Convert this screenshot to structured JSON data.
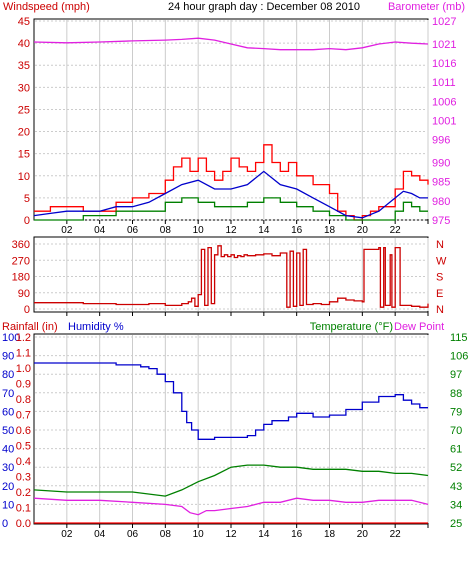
{
  "chart_data": [
    {
      "type": "line",
      "panel": "wind-barometer",
      "title": "24 hour graph day : December 08 2010",
      "ylabel_left": "Windspeed (mph)",
      "ylabel_right": "Barometer (mb)",
      "x_ticks": [
        "02",
        "04",
        "06",
        "08",
        "10",
        "12",
        "14",
        "16",
        "18",
        "20",
        "22",
        ""
      ],
      "xlim": [
        0,
        24
      ],
      "y_left_ticks": [
        0,
        5,
        10,
        15,
        20,
        25,
        30,
        35,
        40,
        45
      ],
      "y_left_range": [
        0,
        45
      ],
      "y_right_ticks": [
        975,
        980,
        985,
        990,
        996,
        1001,
        1006,
        1011,
        1016,
        1021,
        1027
      ],
      "y_right_range": [
        975,
        1027
      ],
      "grid": true,
      "colors": {
        "gust": "#ff0000",
        "average": "#0000cc",
        "lull": "#008000",
        "barometer": "#e020e0"
      },
      "series": [
        {
          "axis": "left",
          "style": "step",
          "x": [
            0,
            1,
            2,
            3,
            4,
            5,
            6,
            7,
            8,
            8.5,
            9,
            9.5,
            10,
            10.5,
            11,
            11.5,
            12,
            12.5,
            13,
            13.5,
            14,
            14.5,
            15,
            15.5,
            16,
            17,
            18,
            18.5,
            19,
            19.5,
            20,
            20.5,
            21,
            22,
            22.5,
            23,
            23.5,
            24
          ],
          "values": [
            2,
            3,
            3,
            2,
            2,
            4,
            5,
            6,
            9,
            12,
            14,
            11,
            14,
            11,
            9,
            11,
            14,
            12,
            11,
            13,
            17,
            13,
            11,
            13,
            10,
            8,
            6,
            2,
            1,
            0,
            1,
            2,
            3,
            7,
            11,
            10,
            9,
            8
          ]
        },
        {
          "axis": "left",
          "style": "line",
          "x": [
            0,
            1,
            2,
            3,
            4,
            5,
            6,
            7,
            8,
            9,
            10,
            11,
            12,
            13,
            14,
            15,
            16,
            17,
            18,
            19,
            20,
            21,
            22,
            22.5,
            23,
            23.5,
            24
          ],
          "values": [
            1,
            1.5,
            2,
            2,
            2,
            3,
            3,
            4,
            6,
            8,
            9,
            7,
            7,
            8,
            11,
            8,
            7,
            5,
            3,
            1,
            0.5,
            2,
            5,
            6.5,
            6,
            5,
            5
          ]
        },
        {
          "axis": "left",
          "style": "step",
          "x": [
            0,
            1,
            2,
            3,
            4,
            5,
            6,
            7,
            8,
            9,
            10,
            11,
            12,
            13,
            14,
            15,
            16,
            17,
            18,
            19,
            20,
            21,
            22,
            22.5,
            23,
            23.5,
            24
          ],
          "values": [
            0,
            0,
            0,
            1,
            1,
            2,
            2,
            2,
            4,
            5,
            4,
            3,
            3,
            4,
            5,
            4,
            3,
            2,
            1,
            0,
            0,
            0,
            2,
            4,
            3,
            2,
            2
          ]
        },
        {
          "axis": "right",
          "style": "line",
          "x": [
            0,
            2,
            4,
            6,
            8,
            9,
            10,
            11,
            12,
            13,
            14,
            15,
            16,
            17,
            18,
            19,
            20,
            21,
            22,
            23,
            24
          ],
          "values": [
            1021.5,
            1021.3,
            1021.5,
            1021.8,
            1022,
            1022.2,
            1022.5,
            1022,
            1021,
            1020,
            1019.8,
            1019.5,
            1019.5,
            1019.5,
            1019.8,
            1019.5,
            1020,
            1021,
            1021.5,
            1021.2,
            1021
          ]
        }
      ]
    },
    {
      "type": "line",
      "panel": "wind-direction",
      "y_left_ticks": [
        0,
        90,
        180,
        270,
        360
      ],
      "y_left_range": [
        0,
        360
      ],
      "y_right_labels": [
        "N",
        "W",
        "S",
        "E",
        "N"
      ],
      "x_ticks": [
        "",
        "",
        "",
        "",
        "",
        "",
        "",
        "",
        "",
        "",
        "",
        ""
      ],
      "xlim": [
        0,
        24
      ],
      "grid": true,
      "colors": {
        "direction": "#cc0000"
      },
      "series": [
        {
          "style": "step",
          "x": [
            0,
            1,
            2,
            3,
            4,
            5,
            6,
            7,
            8,
            9,
            9.4,
            9.6,
            9.8,
            10.0,
            10.2,
            10.4,
            10.6,
            10.8,
            11.0,
            11.2,
            11.4,
            11.6,
            11.8,
            12.0,
            12.2,
            12.4,
            12.6,
            12.8,
            13.0,
            13.5,
            14.0,
            14.5,
            15.0,
            15.4,
            15.6,
            15.8,
            16.0,
            16.2,
            16.4,
            16.6,
            17,
            17.5,
            18,
            18.5,
            19,
            19.5,
            20,
            20.1,
            21,
            21.1,
            21.3,
            21.4,
            21.7,
            21.8,
            22.0,
            22.3,
            23,
            23.5,
            24
          ],
          "values": [
            35,
            35,
            35,
            30,
            30,
            25,
            25,
            30,
            20,
            30,
            40,
            60,
            15,
            80,
            330,
            20,
            340,
            30,
            300,
            350,
            290,
            300,
            290,
            300,
            285,
            295,
            290,
            300,
            295,
            300,
            305,
            295,
            310,
            10,
            320,
            15,
            310,
            20,
            330,
            25,
            30,
            25,
            40,
            60,
            50,
            45,
            40,
            330,
            340,
            10,
            340,
            20,
            300,
            10,
            340,
            20,
            15,
            10,
            30
          ]
        }
      ]
    },
    {
      "type": "line",
      "panel": "rain-humidity-temperature",
      "ylabel_left_1": "Rainfall (in)",
      "ylabel_left_2": "Humidity %",
      "ylabel_right_1": "Temperature (°F)",
      "ylabel_right_2": "Dew Point",
      "x_ticks": [
        "02",
        "04",
        "06",
        "08",
        "10",
        "12",
        "14",
        "16",
        "18",
        "20",
        "22",
        ""
      ],
      "xlim": [
        0,
        24
      ],
      "y_humidity_ticks": [
        0,
        10,
        20,
        30,
        40,
        50,
        60,
        70,
        80,
        90,
        100
      ],
      "y_humidity_range": [
        0,
        100
      ],
      "y_rain_ticks": [
        "0.0",
        "0.1",
        "0.2",
        "0.3",
        "0.4",
        "0.5",
        "0.6",
        "0.7",
        "0.8",
        "0.9",
        "1.0",
        "1.1",
        "1.2"
      ],
      "y_rain_range": [
        0,
        1.2
      ],
      "y_temp_ticks": [
        25,
        34,
        43,
        52,
        61,
        70,
        79,
        88,
        97,
        106,
        115
      ],
      "y_temp_range": [
        25,
        115
      ],
      "grid": true,
      "colors": {
        "humidity": "#0000cc",
        "temperature": "#008000",
        "dewpoint": "#e020e0",
        "rainfall": "#ff0000"
      },
      "series": [
        {
          "axis": "humidity",
          "style": "step",
          "x": [
            0,
            1,
            2,
            3,
            4,
            5,
            6,
            6.5,
            7,
            7.5,
            8,
            8.5,
            9,
            9.3,
            9.6,
            10,
            10.5,
            11,
            12,
            13,
            13.5,
            14,
            14.5,
            15,
            15.5,
            16,
            17,
            18,
            19,
            20,
            21,
            22,
            22.5,
            23,
            23.5,
            24
          ],
          "values": [
            86,
            86,
            86,
            86,
            86,
            85,
            85,
            84,
            83,
            80,
            76,
            70,
            60,
            54,
            50,
            45,
            45,
            46,
            46,
            47,
            50,
            53,
            55,
            55,
            57,
            59,
            57,
            58,
            61,
            65,
            68,
            69,
            66,
            64,
            62,
            62
          ]
        },
        {
          "axis": "temp",
          "style": "line",
          "x": [
            0,
            2,
            4,
            6,
            8,
            9,
            10,
            11,
            12,
            13,
            14,
            15,
            16,
            17,
            18,
            19,
            20,
            21,
            22,
            23,
            24
          ],
          "values": [
            41,
            40,
            40,
            40,
            38,
            41,
            45,
            48,
            52,
            53,
            53,
            52,
            52,
            51,
            51,
            51,
            50,
            50,
            49,
            49,
            48
          ]
        },
        {
          "axis": "temp",
          "style": "line",
          "x": [
            0,
            2,
            4,
            6,
            8,
            9,
            9.5,
            10,
            10.5,
            11,
            12,
            13,
            14,
            15,
            16,
            17,
            18,
            19,
            20,
            21,
            22,
            23,
            24
          ],
          "values": [
            37,
            36,
            36,
            35,
            34,
            33,
            30,
            29,
            31,
            31,
            32,
            33,
            35,
            35,
            37,
            36,
            36,
            35,
            35,
            36,
            36,
            36,
            34
          ]
        },
        {
          "axis": "rain",
          "style": "line",
          "x": [
            0,
            24
          ],
          "values": [
            0,
            0
          ]
        }
      ]
    }
  ]
}
